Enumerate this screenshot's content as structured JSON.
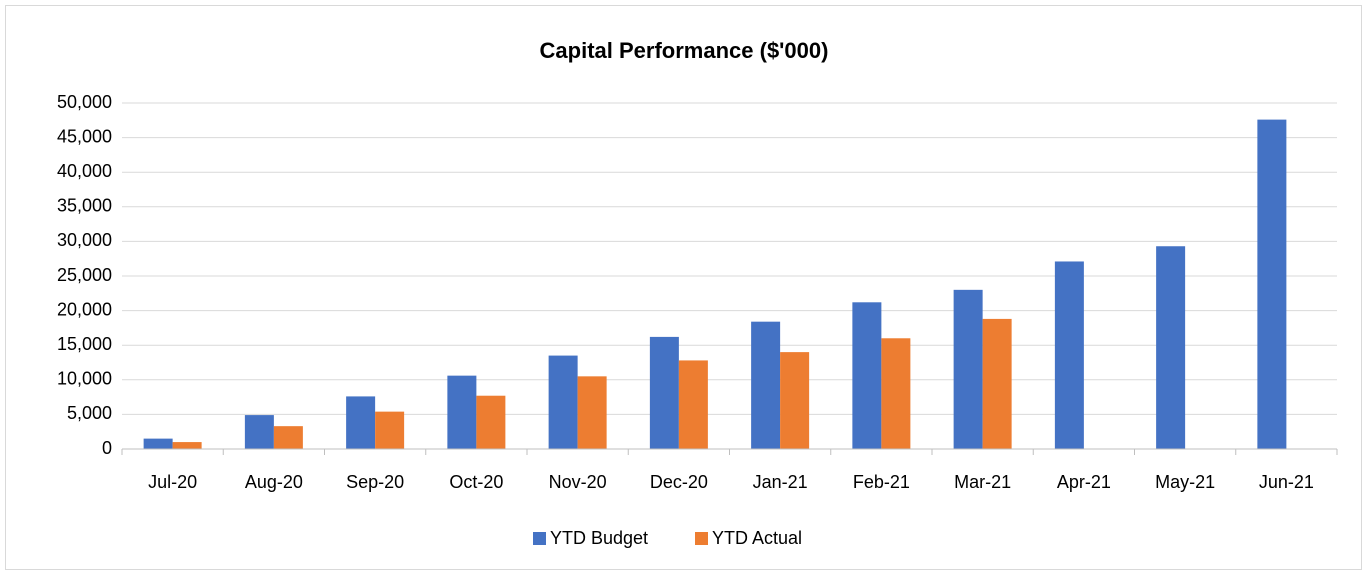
{
  "chart_data": {
    "type": "bar",
    "title": "Capital Performance ($'000)",
    "categories": [
      "Jul-20",
      "Aug-20",
      "Sep-20",
      "Oct-20",
      "Nov-20",
      "Dec-20",
      "Jan-21",
      "Feb-21",
      "Mar-21",
      "Apr-21",
      "May-21",
      "Jun-21"
    ],
    "series": [
      {
        "name": "YTD Budget",
        "color": "#4472c4",
        "values": [
          1500,
          4900,
          7600,
          10600,
          13500,
          16200,
          18400,
          21200,
          23000,
          27100,
          29300,
          47600
        ]
      },
      {
        "name": "YTD Actual",
        "color": "#ed7d31",
        "values": [
          1000,
          3300,
          5400,
          7700,
          10500,
          12800,
          14000,
          16000,
          18800,
          null,
          null,
          null
        ]
      }
    ],
    "ylim": [
      0,
      50000
    ],
    "yticks": [
      0,
      {
        "value": 5000,
        "label": "5,000"
      },
      {
        "value": 10000,
        "label": "10,000"
      },
      {
        "value": 15000,
        "label": "15,000"
      },
      {
        "value": 20000,
        "label": "20,000"
      },
      {
        "value": 25000,
        "label": "25,000"
      },
      {
        "value": 30000,
        "label": "30,000"
      },
      {
        "value": 35000,
        "label": "35,000"
      },
      {
        "value": 40000,
        "label": "40,000"
      },
      {
        "value": 45000,
        "label": "45,000"
      },
      {
        "value": 50000,
        "label": "50,000"
      }
    ],
    "grid": true,
    "legend": "bottom"
  }
}
